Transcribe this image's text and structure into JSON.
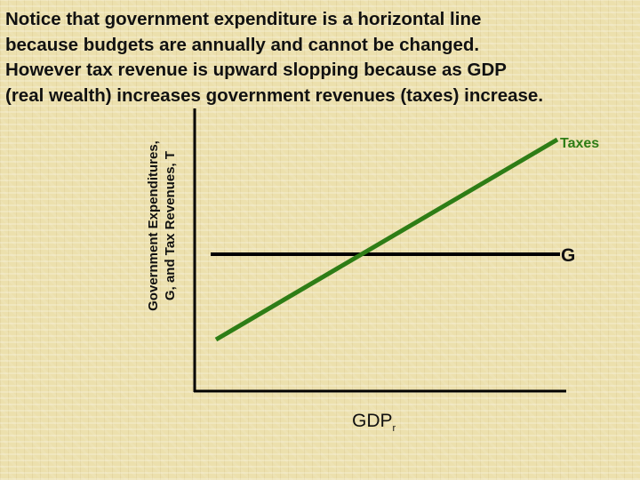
{
  "slide": {
    "title": "Notice that government expenditure is a horizontal line\nbecause budgets are annually and cannot be changed.\nHowever tax revenue is upward slopping because as GDP\n(real wealth) increases government revenues (taxes) increase."
  },
  "diagram": {
    "y_axis_label": "Government Expenditures,\nG, and Tax Revenues, T",
    "x_axis_label": "GDP",
    "x_axis_subscript": "r",
    "series": [
      {
        "label": "Taxes",
        "color": "#2e7d16",
        "shape": "upward-sloping-line"
      },
      {
        "label": "G",
        "color": "#000000",
        "shape": "horizontal-line"
      }
    ]
  }
}
